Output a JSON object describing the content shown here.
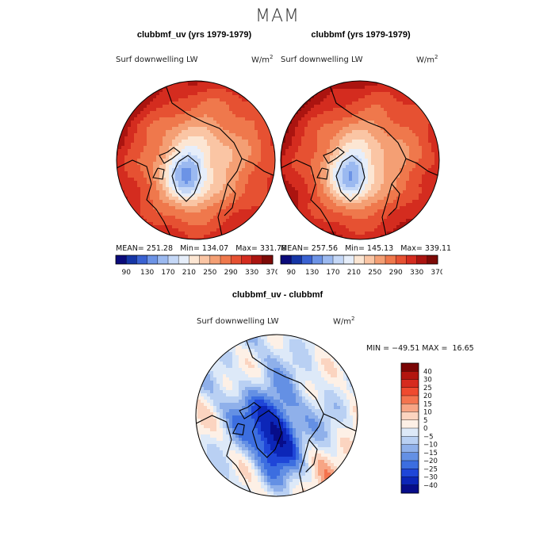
{
  "figure": {
    "title": "MAM",
    "units_prefix": "W/m",
    "units_exp": "2"
  },
  "panels": {
    "left": {
      "title": "clubbmf_uv (yrs 1979-1979)",
      "subtitle": "Surf downwelling LW",
      "stats": "MEAN= 251.28   Min= 134.07   Max= 331.78"
    },
    "right": {
      "title": "clubbmf (yrs 1979-1979)",
      "subtitle": "Surf downwelling LW",
      "stats": "MEAN= 257.56   Min= 145.13   Max= 339.11"
    },
    "diff": {
      "title": "clubbmf_uv - clubbmf",
      "subtitle": "Surf downwelling LW",
      "stats": "MIN = −49.51 MAX =  16.65"
    }
  },
  "chart_data": [
    {
      "type": "heatmap",
      "projection": "polar-stereographic-north",
      "title": "clubbmf_uv (yrs 1979-1979)",
      "variable": "Surf downwelling LW",
      "mean": 251.28,
      "min": 134.07,
      "max": 331.78,
      "colorbar": {
        "orientation": "horizontal",
        "tick_labels": [
          "90",
          "130",
          "170",
          "210",
          "250",
          "290",
          "330",
          "370"
        ],
        "colors": [
          "#0a0a7a",
          "#1535a6",
          "#3a62d2",
          "#6c93e6",
          "#9bb9f0",
          "#c5d8f7",
          "#e6eefa",
          "#fce6d3",
          "#fac5a4",
          "#f49f74",
          "#ef784c",
          "#e65132",
          "#d42c1f",
          "#ab1410",
          "#7d0a07"
        ]
      }
    },
    {
      "type": "heatmap",
      "projection": "polar-stereographic-north",
      "title": "clubbmf (yrs 1979-1979)",
      "variable": "Surf downwelling LW",
      "mean": 257.56,
      "min": 145.13,
      "max": 339.11,
      "colorbar": {
        "orientation": "horizontal",
        "tick_labels": [
          "90",
          "130",
          "170",
          "210",
          "250",
          "290",
          "330",
          "370"
        ],
        "colors": [
          "#0a0a7a",
          "#1535a6",
          "#3a62d2",
          "#6c93e6",
          "#9bb9f0",
          "#c5d8f7",
          "#e6eefa",
          "#fce6d3",
          "#fac5a4",
          "#f49f74",
          "#ef784c",
          "#e65132",
          "#d42c1f",
          "#ab1410",
          "#7d0a07"
        ]
      }
    },
    {
      "type": "heatmap",
      "projection": "polar-stereographic-north",
      "title": "clubbmf_uv - clubbmf",
      "variable": "Surf downwelling LW",
      "min": -49.51,
      "max": 16.65,
      "colorbar": {
        "orientation": "vertical",
        "tick_labels": [
          "40",
          "30",
          "25",
          "20",
          "15",
          "10",
          "5",
          "0",
          "−5",
          "−10",
          "−15",
          "−20",
          "−25",
          "−30",
          "−40"
        ],
        "colors": [
          "#7a0505",
          "#b3150f",
          "#d62a1e",
          "#ef4a2f",
          "#f4744f",
          "#f7a585",
          "#fbd4c0",
          "#fdf0e6",
          "#dde9f8",
          "#b9d0f3",
          "#8fb0ea",
          "#6490e4",
          "#3c6ee0",
          "#1f46d8",
          "#0c26b8",
          "#070d8a"
        ]
      }
    }
  ]
}
